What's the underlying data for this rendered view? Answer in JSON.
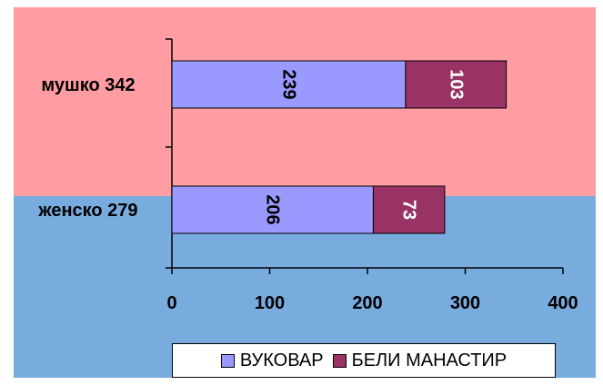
{
  "chart_data": {
    "type": "bar",
    "orientation": "horizontal",
    "stacked": true,
    "categories": [
      "мушко 342",
      "женско 279"
    ],
    "series": [
      {
        "name": "ВУКОВАР",
        "values": [
          239,
          206
        ],
        "color": "#9999ff"
      },
      {
        "name": "БЕЛИ МАНАСТИР",
        "values": [
          103,
          73
        ],
        "color": "#993366"
      }
    ],
    "xlim": [
      0,
      400
    ],
    "xticks": [
      "0",
      "100",
      "200",
      "300",
      "400"
    ],
    "legend_position": "bottom",
    "grid": false
  },
  "colors": {
    "background_top": "#ff9da3",
    "background_bottom": "#78acdf"
  }
}
